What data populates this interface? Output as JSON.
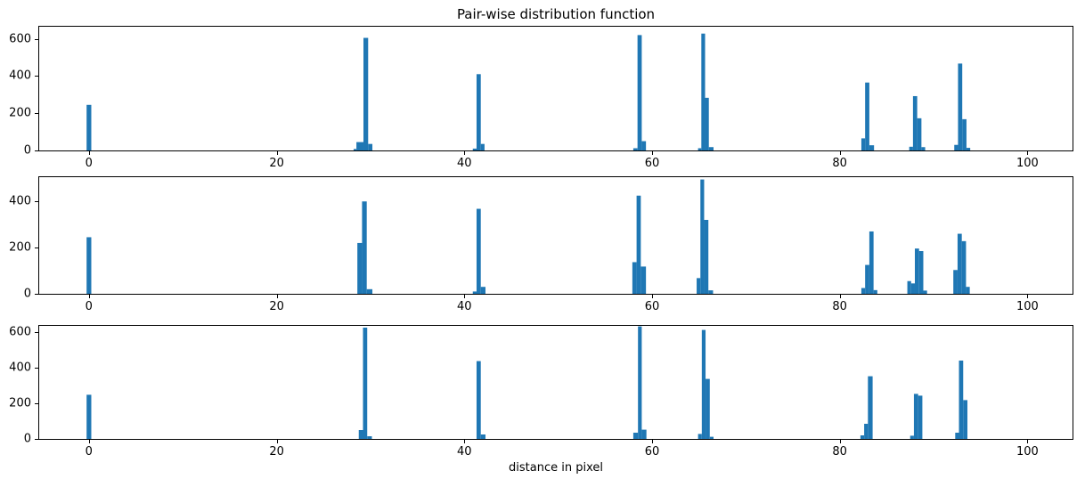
{
  "figure": {
    "title": "Pair-wise distribution function",
    "xlabel": "distance in pixel",
    "background": "#ffffff"
  },
  "chart_data": {
    "type": "bar",
    "title": "Pair-wise distribution function",
    "xlabel": "distance in pixel",
    "ylabel": "",
    "bar_color": "#1f77b4",
    "spine_color": "#000000",
    "grid": false,
    "legend": false,
    "xlim": [
      -5.3,
      104.8
    ],
    "xticks": [
      0,
      20,
      40,
      60,
      80,
      100
    ],
    "subplots": [
      {
        "name": "subplot-top",
        "ylim": [
          0,
          665
        ],
        "yticks": [
          0,
          200,
          400,
          600
        ],
        "bars": [
          [
            -0.25,
            0.5,
            245
          ],
          [
            28.2,
            0.3,
            8
          ],
          [
            28.5,
            0.75,
            45
          ],
          [
            29.25,
            0.5,
            605
          ],
          [
            29.75,
            0.45,
            35
          ],
          [
            40.9,
            0.4,
            10
          ],
          [
            41.3,
            0.45,
            410
          ],
          [
            41.75,
            0.4,
            35
          ],
          [
            58.0,
            0.45,
            12
          ],
          [
            58.45,
            0.45,
            620
          ],
          [
            58.9,
            0.45,
            50
          ],
          [
            64.9,
            0.35,
            12
          ],
          [
            65.25,
            0.4,
            628
          ],
          [
            65.65,
            0.4,
            283
          ],
          [
            66.05,
            0.5,
            18
          ],
          [
            82.3,
            0.4,
            65
          ],
          [
            82.7,
            0.45,
            365
          ],
          [
            83.15,
            0.5,
            28
          ],
          [
            87.4,
            0.4,
            20
          ],
          [
            87.8,
            0.45,
            292
          ],
          [
            88.25,
            0.45,
            173
          ],
          [
            88.7,
            0.4,
            18
          ],
          [
            92.2,
            0.4,
            30
          ],
          [
            92.6,
            0.45,
            467
          ],
          [
            93.05,
            0.45,
            168
          ],
          [
            93.5,
            0.4,
            14
          ]
        ]
      },
      {
        "name": "subplot-middle",
        "ylim": [
          0,
          505
        ],
        "yticks": [
          0,
          200,
          400
        ],
        "bars": [
          [
            -0.25,
            0.5,
            245
          ],
          [
            28.6,
            0.5,
            220
          ],
          [
            29.1,
            0.5,
            400
          ],
          [
            29.6,
            0.6,
            20
          ],
          [
            40.9,
            0.4,
            10
          ],
          [
            41.3,
            0.45,
            368
          ],
          [
            41.75,
            0.5,
            30
          ],
          [
            57.9,
            0.45,
            137
          ],
          [
            58.35,
            0.45,
            425
          ],
          [
            58.8,
            0.55,
            118
          ],
          [
            64.75,
            0.4,
            68
          ],
          [
            65.15,
            0.4,
            495
          ],
          [
            65.55,
            0.45,
            320
          ],
          [
            66.0,
            0.5,
            15
          ],
          [
            82.3,
            0.4,
            25
          ],
          [
            82.7,
            0.45,
            125
          ],
          [
            83.15,
            0.45,
            270
          ],
          [
            83.6,
            0.4,
            16
          ],
          [
            87.2,
            0.4,
            55
          ],
          [
            87.6,
            0.4,
            45
          ],
          [
            88.0,
            0.45,
            196
          ],
          [
            88.45,
            0.45,
            185
          ],
          [
            88.9,
            0.4,
            14
          ],
          [
            92.1,
            0.45,
            103
          ],
          [
            92.55,
            0.45,
            260
          ],
          [
            93.0,
            0.45,
            228
          ],
          [
            93.45,
            0.4,
            30
          ]
        ]
      },
      {
        "name": "subplot-bottom",
        "ylim": [
          0,
          635
        ],
        "yticks": [
          0,
          200,
          400,
          600
        ],
        "bars": [
          [
            -0.25,
            0.5,
            248
          ],
          [
            28.75,
            0.45,
            50
          ],
          [
            29.2,
            0.45,
            625
          ],
          [
            29.65,
            0.5,
            15
          ],
          [
            41.3,
            0.45,
            437
          ],
          [
            41.75,
            0.5,
            25
          ],
          [
            58.0,
            0.5,
            35
          ],
          [
            58.5,
            0.4,
            632
          ],
          [
            58.9,
            0.5,
            52
          ],
          [
            64.9,
            0.4,
            28
          ],
          [
            65.3,
            0.4,
            612
          ],
          [
            65.7,
            0.45,
            337
          ],
          [
            66.15,
            0.4,
            12
          ],
          [
            82.2,
            0.4,
            20
          ],
          [
            82.6,
            0.4,
            85
          ],
          [
            83.0,
            0.5,
            352
          ],
          [
            87.5,
            0.4,
            18
          ],
          [
            87.9,
            0.45,
            253
          ],
          [
            88.35,
            0.45,
            243
          ],
          [
            92.3,
            0.4,
            35
          ],
          [
            92.7,
            0.45,
            440
          ],
          [
            93.15,
            0.45,
            218
          ]
        ]
      }
    ]
  }
}
